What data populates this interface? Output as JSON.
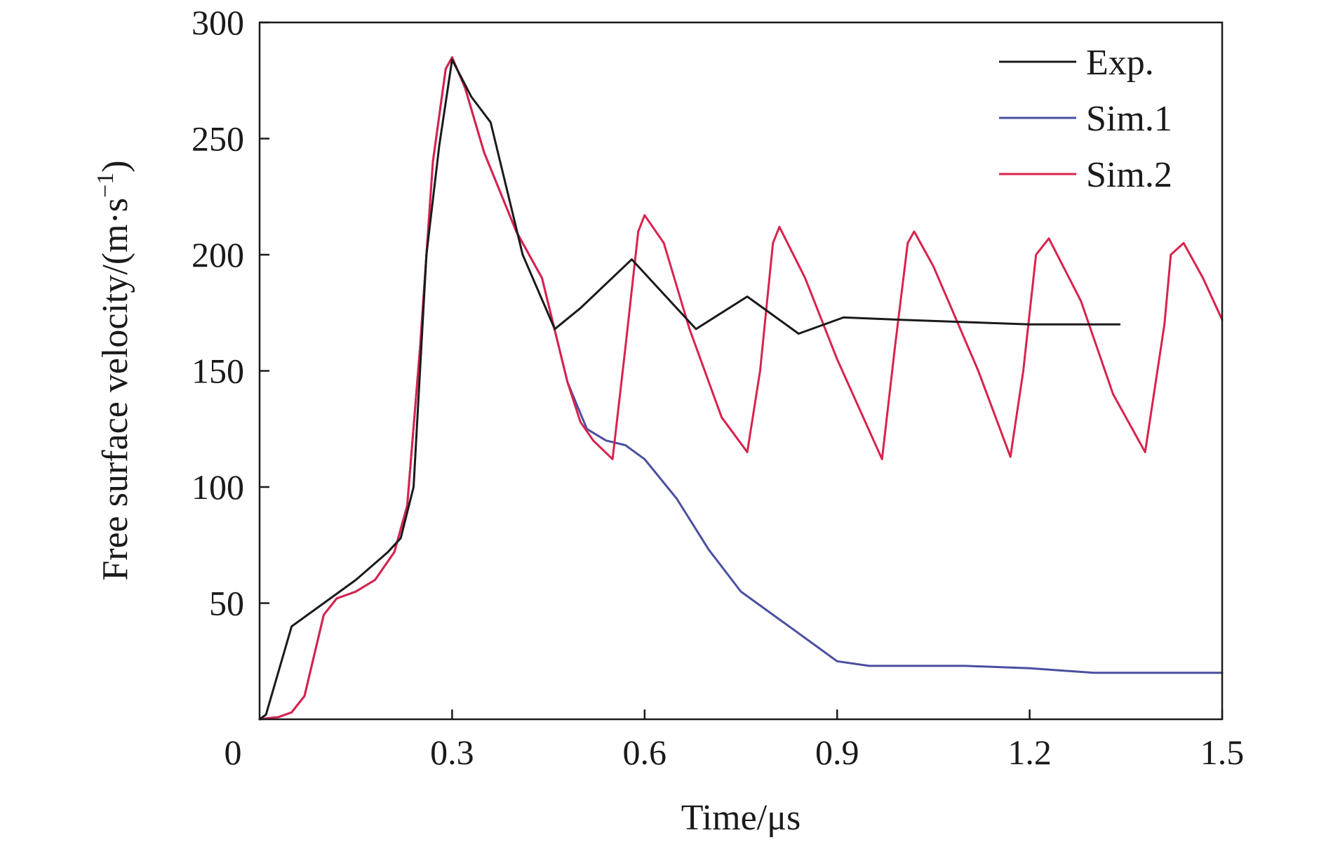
{
  "chart_data": {
    "type": "line",
    "xlabel": "Time/μs",
    "ylabel": "Free surface velocity/(m·s",
    "ylabel_sup": "−1",
    "ylabel_close": ")",
    "xlim": [
      0,
      1.5
    ],
    "ylim": [
      0,
      300
    ],
    "x_ticks": [
      0.3,
      0.6,
      0.9,
      1.2,
      1.5
    ],
    "x_tick_labels": [
      "0.3",
      "0.6",
      "0.9",
      "1.2",
      "1.5"
    ],
    "origin_label": "0",
    "y_ticks": [
      50,
      100,
      150,
      200,
      250,
      300
    ],
    "y_tick_labels": [
      "50",
      "100",
      "150",
      "200",
      "250",
      "300"
    ],
    "grid": false,
    "legend_position": "top-right",
    "series": [
      {
        "name": "Exp.",
        "color": "#1a1a1a",
        "x": [
          0,
          0.01,
          0.05,
          0.1,
          0.15,
          0.2,
          0.22,
          0.24,
          0.26,
          0.28,
          0.3,
          0.33,
          0.36,
          0.41,
          0.46,
          0.5,
          0.58,
          0.6,
          0.68,
          0.76,
          0.84,
          0.91,
          1.0,
          1.1,
          1.2,
          1.34
        ],
        "y": [
          0,
          2,
          40,
          50,
          60,
          72,
          78,
          100,
          200,
          247,
          284,
          268,
          257,
          200,
          168,
          177,
          198,
          192,
          168,
          182,
          166,
          173,
          172,
          171,
          170,
          170
        ]
      },
      {
        "name": "Sim.1",
        "color": "#4a4fa0",
        "x": [
          0,
          0.03,
          0.05,
          0.07,
          0.1,
          0.12,
          0.15,
          0.18,
          0.21,
          0.23,
          0.25,
          0.27,
          0.29,
          0.3,
          0.32,
          0.35,
          0.4,
          0.44,
          0.48,
          0.51,
          0.54,
          0.57,
          0.6,
          0.65,
          0.7,
          0.75,
          0.8,
          0.85,
          0.9,
          0.95,
          1.0,
          1.1,
          1.2,
          1.3,
          1.4,
          1.5
        ],
        "y": [
          0,
          1,
          3,
          10,
          45,
          52,
          55,
          60,
          72,
          92,
          160,
          240,
          280,
          285,
          272,
          244,
          210,
          190,
          145,
          125,
          120,
          118,
          112,
          95,
          73,
          55,
          45,
          35,
          25,
          23,
          23,
          23,
          22,
          20,
          20,
          20
        ]
      },
      {
        "name": "Sim.2",
        "color": "#d9224d",
        "x": [
          0,
          0.03,
          0.05,
          0.07,
          0.1,
          0.12,
          0.15,
          0.18,
          0.21,
          0.23,
          0.25,
          0.27,
          0.29,
          0.3,
          0.32,
          0.35,
          0.4,
          0.44,
          0.48,
          0.5,
          0.52,
          0.55,
          0.57,
          0.59,
          0.6,
          0.63,
          0.67,
          0.72,
          0.76,
          0.78,
          0.8,
          0.81,
          0.85,
          0.9,
          0.97,
          0.99,
          1.01,
          1.02,
          1.05,
          1.12,
          1.17,
          1.19,
          1.21,
          1.23,
          1.28,
          1.33,
          1.38,
          1.41,
          1.42,
          1.44,
          1.47,
          1.5
        ],
        "y": [
          0,
          1,
          3,
          10,
          45,
          52,
          55,
          60,
          72,
          92,
          160,
          240,
          280,
          285,
          272,
          244,
          210,
          190,
          145,
          128,
          120,
          112,
          160,
          210,
          217,
          205,
          168,
          130,
          115,
          150,
          205,
          212,
          190,
          155,
          112,
          160,
          205,
          210,
          195,
          150,
          113,
          150,
          200,
          207,
          180,
          140,
          115,
          170,
          200,
          205,
          190,
          172
        ]
      }
    ]
  }
}
